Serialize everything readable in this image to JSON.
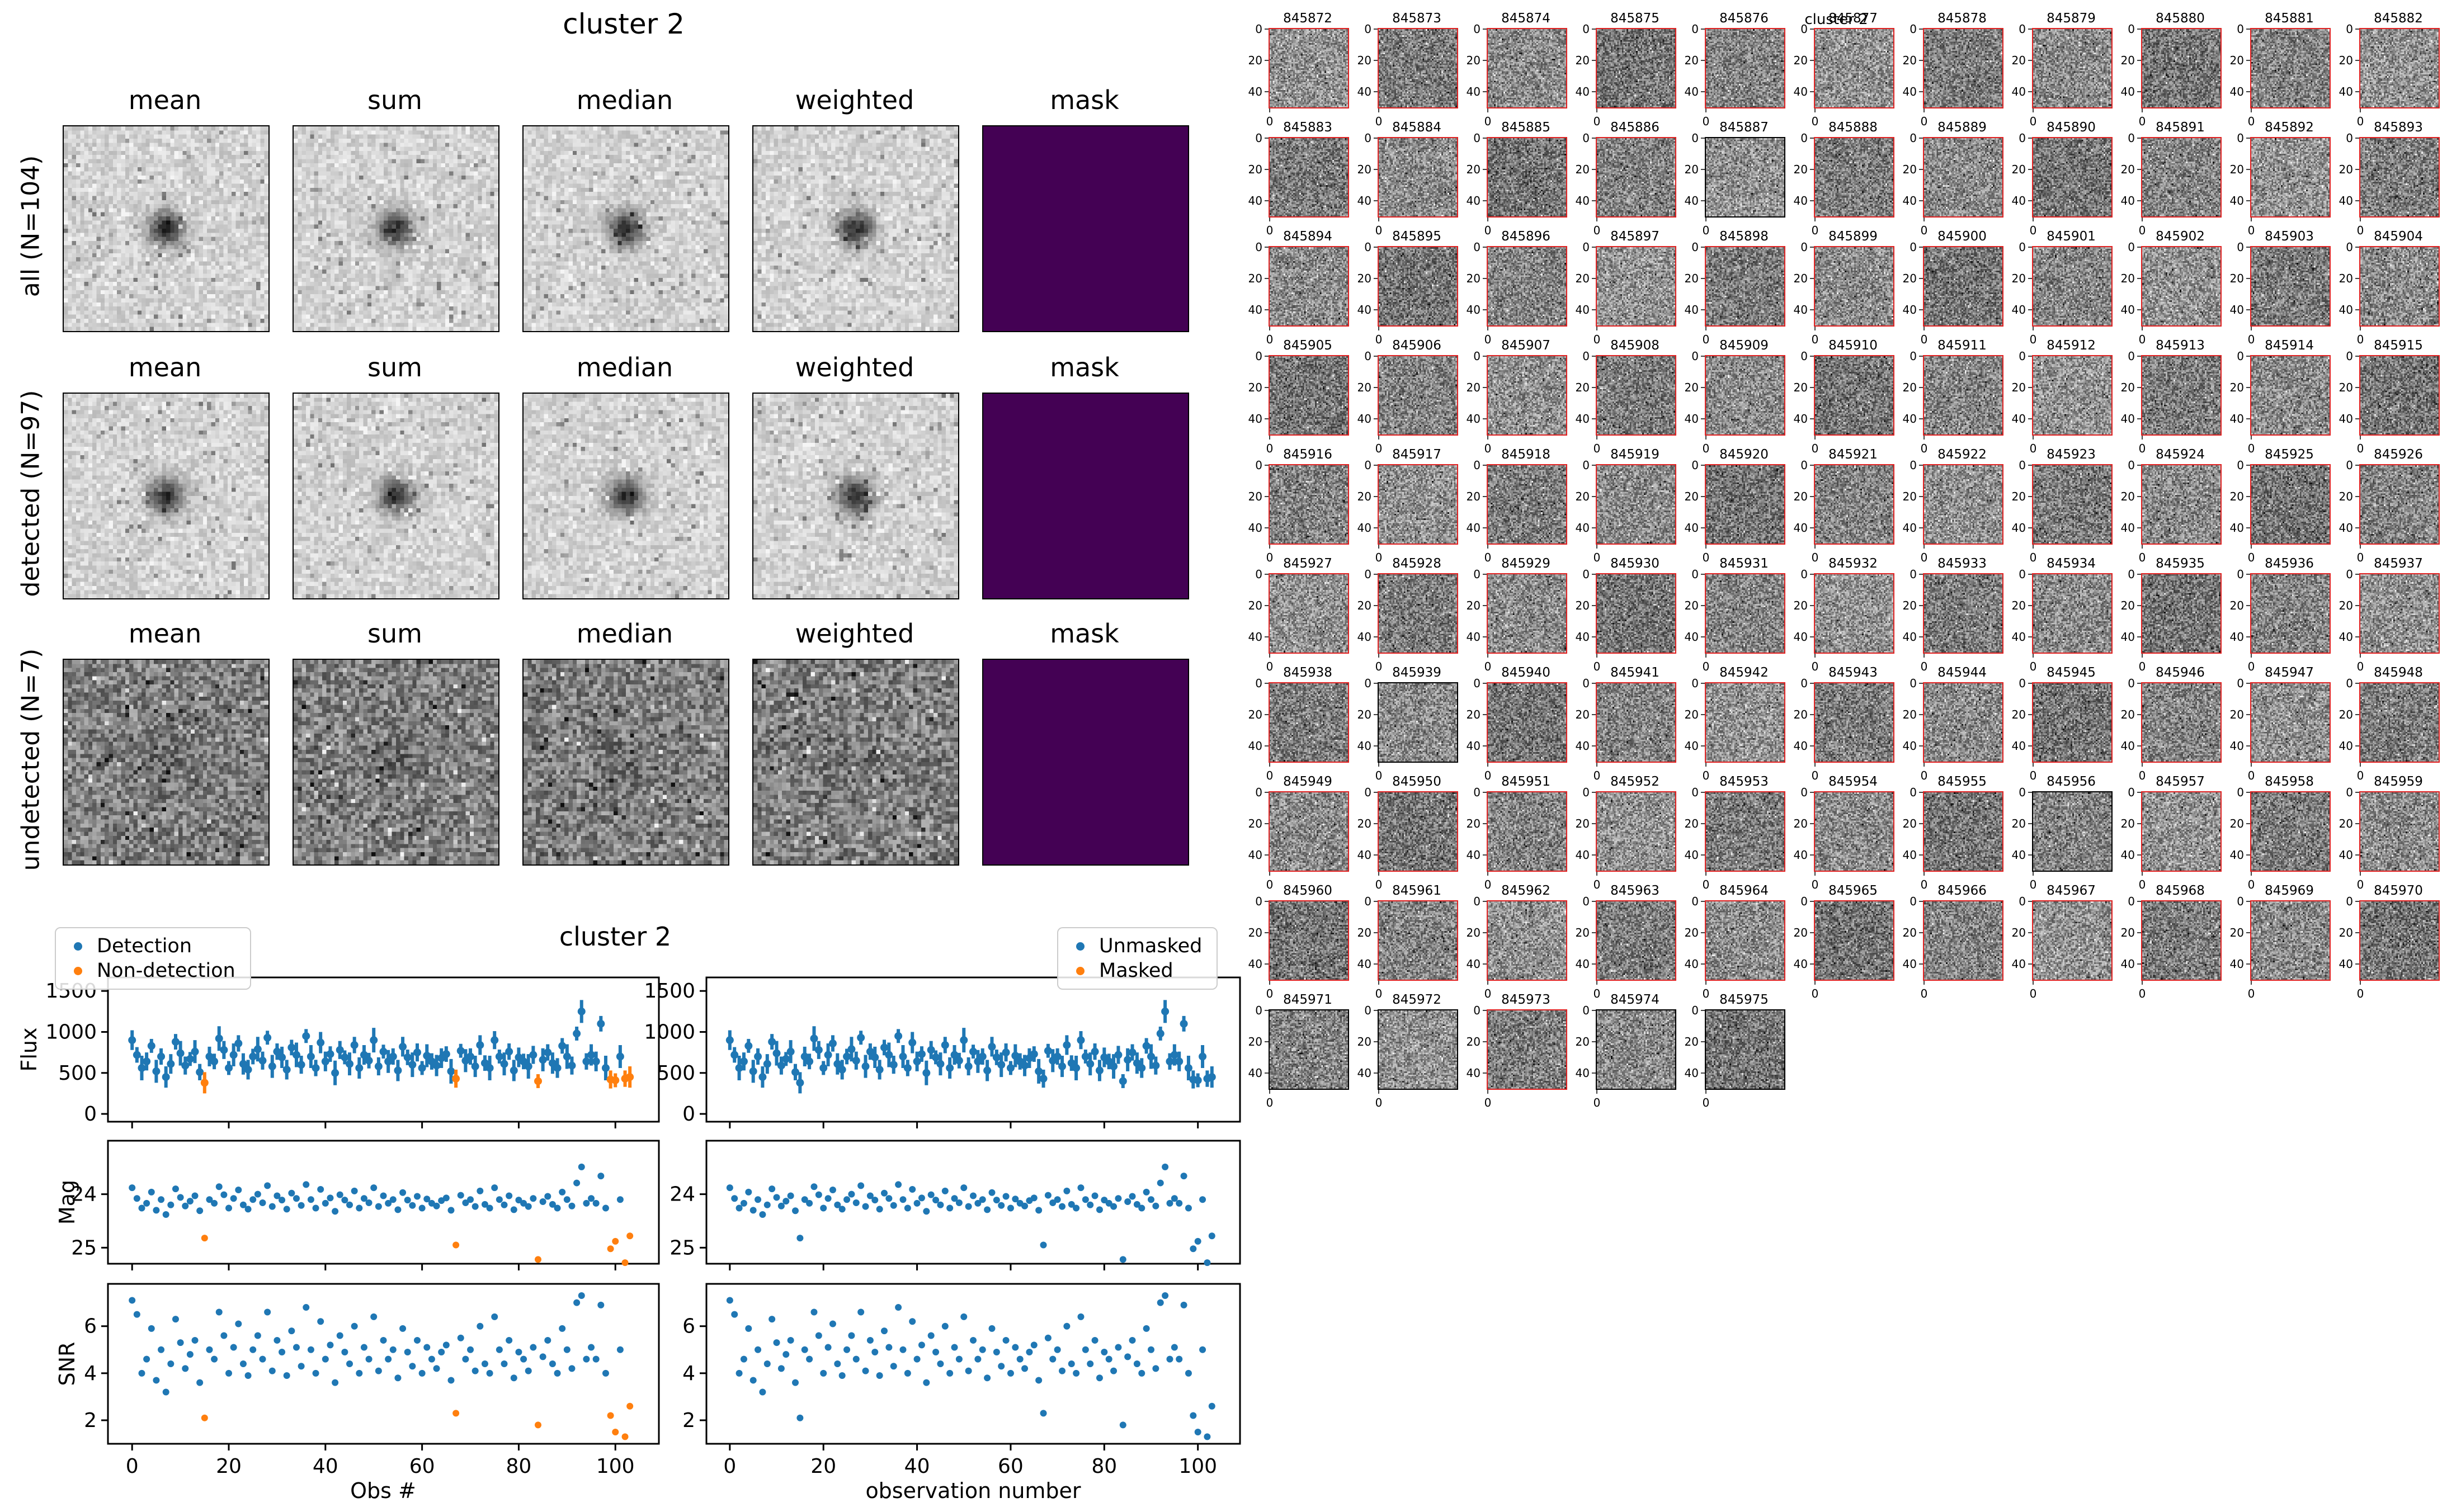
{
  "stack_panel": {
    "title": "cluster 2",
    "column_headers": [
      "mean",
      "sum",
      "median",
      "weighted",
      "mask"
    ],
    "rows": [
      {
        "label": "all (N=104)"
      },
      {
        "label": "detected (N=97)"
      },
      {
        "label": "undetected (N=7)"
      }
    ],
    "mask_color": "#440154"
  },
  "thumb_grid": {
    "title": "cluster 2",
    "columns": 11,
    "xticks": [
      0,
      20,
      40
    ],
    "yticks": [
      0,
      20,
      40
    ],
    "detected_border_color": "#e02222",
    "undetected_border_color": "#000000",
    "ids": [
      845872,
      845873,
      845874,
      845875,
      845876,
      845877,
      845878,
      845879,
      845880,
      845881,
      845882,
      845883,
      845884,
      845885,
      845886,
      845887,
      845888,
      845889,
      845890,
      845891,
      845892,
      845893,
      845894,
      845895,
      845896,
      845897,
      845898,
      845899,
      845900,
      845901,
      845902,
      845903,
      845904,
      845905,
      845906,
      845907,
      845908,
      845909,
      845910,
      845911,
      845912,
      845913,
      845914,
      845915,
      845916,
      845917,
      845918,
      845919,
      845920,
      845921,
      845922,
      845923,
      845924,
      845925,
      845926,
      845927,
      845928,
      845929,
      845930,
      845931,
      845932,
      845933,
      845934,
      845935,
      845936,
      845937,
      845938,
      845939,
      845940,
      845941,
      845942,
      845943,
      845944,
      845945,
      845946,
      845947,
      845948,
      845949,
      845950,
      845951,
      845952,
      845953,
      845954,
      845955,
      845956,
      845957,
      845958,
      845959,
      845960,
      845961,
      845962,
      845963,
      845964,
      845965,
      845966,
      845967,
      845968,
      845969,
      845970,
      845971,
      845972,
      845973,
      845974,
      845975
    ],
    "undetected_ids": [
      845887,
      845939,
      845956,
      845971,
      845972,
      845974,
      845975
    ]
  },
  "charts": {
    "suptitle": "cluster 2",
    "colors": {
      "detection": "#1f77b4",
      "non_detection": "#ff7f0e"
    },
    "left": {
      "legend": [
        "Detection",
        "Non-detection"
      ],
      "xlabel": "Obs #",
      "color_by_detection": true
    },
    "right": {
      "legend": [
        "Unmasked",
        "Masked"
      ],
      "xlabel": "observation number",
      "color_by_detection": false
    },
    "xlim": [
      -5,
      109
    ],
    "xticks": [
      0,
      20,
      40,
      60,
      80,
      100
    ],
    "subplots": [
      {
        "key": "flux",
        "ylabel": "Flux",
        "ylim": [
          -95,
          1665
        ],
        "yticks": [
          0,
          500,
          1000,
          1500
        ],
        "inverted": false,
        "errorbars": true
      },
      {
        "key": "mag",
        "ylabel": "Mag",
        "ylim": [
          23.0,
          25.3
        ],
        "yticks": [
          24,
          25
        ],
        "inverted": true,
        "errorbars": false
      },
      {
        "key": "snr",
        "ylabel": "SNR",
        "ylim": [
          1.0,
          7.8
        ],
        "yticks": [
          2,
          4,
          6
        ],
        "inverted": false,
        "errorbars": false
      }
    ]
  },
  "chart_data": {
    "type": "scatter",
    "n": 104,
    "x_is_index": true,
    "non_detection_indices": [
      15,
      67,
      84,
      99,
      100,
      102,
      103
    ],
    "flux": [
      900,
      720,
      560,
      640,
      830,
      520,
      700,
      450,
      610,
      880,
      740,
      590,
      670,
      760,
      510,
      380,
      700,
      640,
      920,
      780,
      560,
      720,
      860,
      610,
      540,
      700,
      790,
      650,
      930,
      580,
      760,
      690,
      540,
      810,
      720,
      600,
      950,
      700,
      560,
      870,
      640,
      730,
      500,
      780,
      690,
      610,
      840,
      560,
      720,
      650,
      900,
      580,
      760,
      640,
      700,
      530,
      820,
      690,
      600,
      750,
      560,
      710,
      640,
      590,
      680,
      730,
      520,
      430,
      770,
      650,
      700,
      580,
      840,
      620,
      560,
      900,
      700,
      610,
      760,
      530,
      690,
      640,
      580,
      720,
      400,
      660,
      750,
      620,
      560,
      830,
      700,
      590,
      980,
      1250,
      640,
      720,
      640,
      1100,
      560,
      420,
      410,
      700,
      430,
      450
    ],
    "flux_err": [
      120,
      95,
      150,
      110,
      85,
      140,
      100,
      130,
      120,
      95,
      150,
      110,
      85,
      140,
      100,
      130,
      120,
      95,
      150,
      110,
      85,
      140,
      100,
      130,
      120,
      95,
      150,
      110,
      85,
      140,
      100,
      130,
      120,
      95,
      150,
      110,
      85,
      140,
      100,
      130,
      120,
      95,
      150,
      110,
      85,
      140,
      100,
      130,
      120,
      95,
      150,
      110,
      85,
      140,
      100,
      130,
      120,
      95,
      150,
      110,
      85,
      140,
      100,
      130,
      120,
      95,
      150,
      110,
      85,
      140,
      100,
      130,
      120,
      95,
      150,
      110,
      85,
      140,
      100,
      130,
      120,
      95,
      150,
      110,
      85,
      140,
      100,
      130,
      120,
      95,
      150,
      110,
      85,
      140,
      100,
      130,
      120,
      95,
      150,
      110,
      85,
      140,
      100,
      130
    ],
    "mag": [
      23.88,
      24.08,
      24.26,
      24.17,
      23.96,
      24.3,
      24.1,
      24.38,
      24.2,
      23.9,
      24.06,
      24.22,
      24.13,
      24.03,
      24.31,
      24.82,
      24.1,
      24.17,
      23.86,
      24.01,
      24.26,
      24.08,
      23.92,
      24.2,
      24.28,
      24.1,
      24.0,
      24.16,
      23.84,
      24.23,
      24.03,
      24.11,
      24.28,
      23.98,
      24.08,
      24.21,
      23.82,
      24.1,
      24.26,
      23.91,
      24.17,
      24.07,
      24.32,
      24.01,
      24.11,
      24.2,
      23.94,
      24.26,
      24.08,
      24.16,
      23.88,
      24.23,
      24.03,
      24.17,
      24.1,
      24.29,
      23.97,
      24.11,
      24.21,
      24.04,
      24.26,
      24.09,
      24.17,
      24.22,
      24.12,
      24.07,
      24.3,
      24.95,
      24.02,
      24.16,
      24.1,
      24.23,
      23.94,
      24.19,
      24.26,
      23.88,
      24.1,
      24.2,
      24.03,
      24.29,
      24.11,
      24.17,
      24.23,
      24.08,
      25.22,
      24.14,
      24.04,
      24.19,
      24.26,
      23.96,
      24.1,
      24.22,
      23.79,
      23.49,
      24.17,
      24.08,
      24.17,
      23.66,
      24.26,
      25.02,
      24.88,
      24.1,
      25.28,
      24.78
    ],
    "snr": [
      7.1,
      6.5,
      4.0,
      4.6,
      5.9,
      3.7,
      5.0,
      3.2,
      4.4,
      6.3,
      5.3,
      4.2,
      4.8,
      5.4,
      3.6,
      2.1,
      5.0,
      4.6,
      6.6,
      5.6,
      4.0,
      5.1,
      6.1,
      4.4,
      3.9,
      5.0,
      5.6,
      4.6,
      6.6,
      4.1,
      5.4,
      4.9,
      3.9,
      5.8,
      5.1,
      4.3,
      6.8,
      5.0,
      4.0,
      6.2,
      4.6,
      5.2,
      3.6,
      5.6,
      4.9,
      4.4,
      6.0,
      4.0,
      5.1,
      4.6,
      6.4,
      4.1,
      5.4,
      4.6,
      5.0,
      3.8,
      5.9,
      4.9,
      4.3,
      5.4,
      4.0,
      5.1,
      4.6,
      4.2,
      4.9,
      5.2,
      3.7,
      2.3,
      5.5,
      4.6,
      5.0,
      4.1,
      6.0,
      4.4,
      4.0,
      6.4,
      5.0,
      4.4,
      5.4,
      3.8,
      4.9,
      4.6,
      4.1,
      5.1,
      1.8,
      4.7,
      5.4,
      4.4,
      4.0,
      5.9,
      5.0,
      4.2,
      7.0,
      7.3,
      4.6,
      5.1,
      4.6,
      6.9,
      4.0,
      2.2,
      1.5,
      5.0,
      1.3,
      2.6
    ]
  }
}
